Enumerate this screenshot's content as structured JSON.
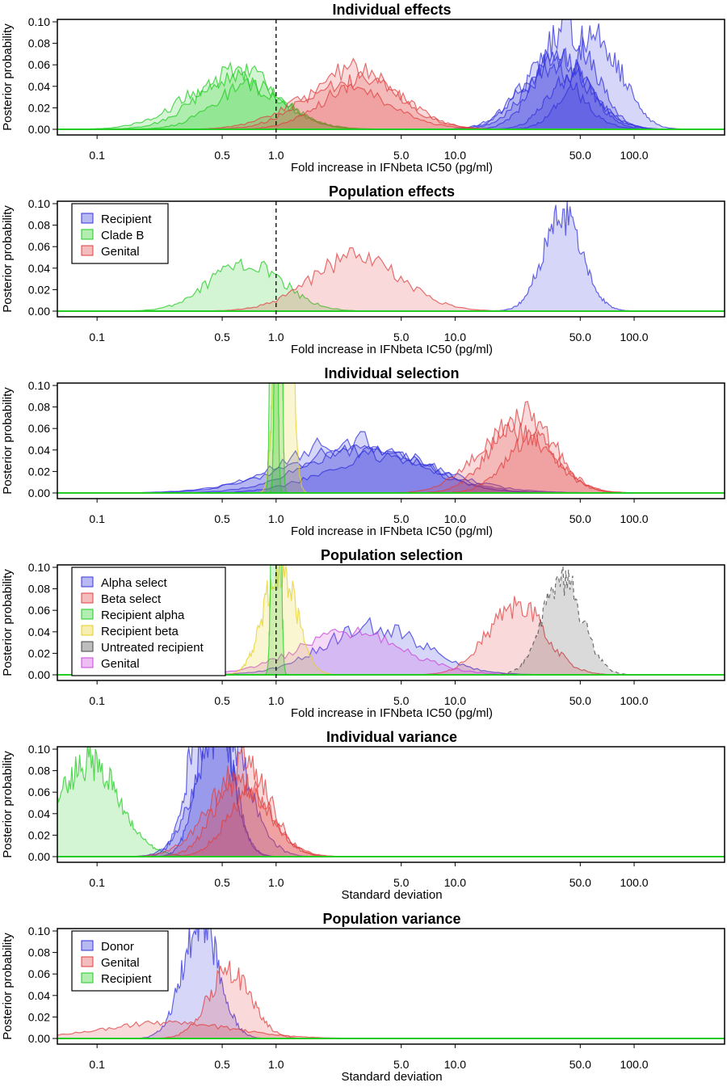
{
  "colors": {
    "blue": "#3333dd",
    "green": "#22cc22",
    "red": "#e04040",
    "yellow": "#e8d020",
    "gray": "#444444",
    "purple": "#cc44dd"
  },
  "chart_data": [
    {
      "type": "area",
      "title": "Individual effects",
      "xlabel": "Fold increase in IFNbeta IC50 (pg/ml)",
      "ylabel": "Posterior probability",
      "xscale": "log",
      "xlim": [
        0.06,
        320
      ],
      "ylim": [
        0,
        0.1
      ],
      "xticks": [
        0.1,
        0.5,
        1.0,
        5.0,
        10.0,
        50.0,
        100.0
      ],
      "xtick_labels": [
        "0.1",
        "0.5",
        "1.0",
        "5.0",
        "10.0",
        "50.0",
        "100.0"
      ],
      "yticks": [
        0,
        0.02,
        0.04,
        0.06,
        0.08,
        0.1
      ],
      "ytick_labels": [
        "0.00",
        "0.02",
        "0.04",
        "0.06",
        "0.08",
        "0.10"
      ],
      "vline": 1.0,
      "legend": null,
      "series": [
        {
          "color": "blue",
          "center": 38,
          "sd": 0.17,
          "peak": 0.065
        },
        {
          "color": "blue",
          "center": 42,
          "sd": 0.15,
          "peak": 0.095
        },
        {
          "color": "blue",
          "center": 36,
          "sd": 0.18,
          "peak": 0.07
        },
        {
          "color": "blue",
          "center": 62,
          "sd": 0.14,
          "peak": 0.085
        },
        {
          "color": "blue",
          "center": 33,
          "sd": 0.16,
          "peak": 0.06
        },
        {
          "color": "blue",
          "center": 45,
          "sd": 0.13,
          "peak": 0.05
        },
        {
          "color": "green",
          "center": 0.62,
          "sd": 0.22,
          "peak": 0.055
        },
        {
          "color": "green",
          "center": 0.72,
          "sd": 0.2,
          "peak": 0.04
        },
        {
          "color": "green",
          "center": 0.55,
          "sd": 0.25,
          "peak": 0.048
        },
        {
          "color": "red",
          "center": 2.7,
          "sd": 0.24,
          "peak": 0.055
        },
        {
          "color": "red",
          "center": 3.2,
          "sd": 0.22,
          "peak": 0.047
        },
        {
          "color": "red",
          "center": 2.3,
          "sd": 0.26,
          "peak": 0.04
        }
      ]
    },
    {
      "type": "area",
      "title": "Population effects",
      "xlabel": "Fold increase in IFNbeta IC50 (pg/ml)",
      "ylabel": "Posterior probability",
      "xscale": "log",
      "xlim": [
        0.06,
        320
      ],
      "ylim": [
        0,
        0.1
      ],
      "xticks": [
        0.1,
        0.5,
        1.0,
        5.0,
        10.0,
        50.0,
        100.0
      ],
      "xtick_labels": [
        "0.1",
        "0.5",
        "1.0",
        "5.0",
        "10.0",
        "50.0",
        "100.0"
      ],
      "yticks": [
        0,
        0.02,
        0.04,
        0.06,
        0.08,
        0.1
      ],
      "ytick_labels": [
        "0.00",
        "0.02",
        "0.04",
        "0.06",
        "0.08",
        "0.10"
      ],
      "vline": 1.0,
      "legend": [
        {
          "label": "Recipient",
          "color": "blue"
        },
        {
          "label": "Clade B",
          "color": "green"
        },
        {
          "label": "Genital",
          "color": "red"
        }
      ],
      "series": [
        {
          "color": "blue",
          "center": 40,
          "sd": 0.11,
          "peak": 0.088
        },
        {
          "color": "green",
          "center": 0.68,
          "sd": 0.2,
          "peak": 0.046
        },
        {
          "color": "red",
          "center": 2.8,
          "sd": 0.25,
          "peak": 0.05
        }
      ]
    },
    {
      "type": "area",
      "title": "Individual selection",
      "xlabel": "Fold increase in IFNbeta IC50 (pg/ml)",
      "ylabel": "Posterior probability",
      "xscale": "log",
      "xlim": [
        0.06,
        320
      ],
      "ylim": [
        0,
        0.1
      ],
      "xticks": [
        0.1,
        0.5,
        1.0,
        5.0,
        10.0,
        50.0,
        100.0
      ],
      "xtick_labels": [
        "0.1",
        "0.5",
        "1.0",
        "5.0",
        "10.0",
        "50.0",
        "100.0"
      ],
      "yticks": [
        0,
        0.02,
        0.04,
        0.06,
        0.08,
        0.1
      ],
      "ytick_labels": [
        "0.00",
        "0.02",
        "0.04",
        "0.06",
        "0.08",
        "0.10"
      ],
      "vline": null,
      "legend": null,
      "series": [
        {
          "color": "blue",
          "center": 2.6,
          "sd": 0.35,
          "peak": 0.05
        },
        {
          "color": "blue",
          "center": 3.3,
          "sd": 0.33,
          "peak": 0.045
        },
        {
          "color": "blue",
          "center": 2.9,
          "sd": 0.4,
          "peak": 0.04
        },
        {
          "color": "blue",
          "center": 3.8,
          "sd": 0.3,
          "peak": 0.035
        },
        {
          "color": "red",
          "center": 24,
          "sd": 0.17,
          "peak": 0.075
        },
        {
          "color": "red",
          "center": 21,
          "sd": 0.2,
          "peak": 0.06
        },
        {
          "color": "red",
          "center": 27,
          "sd": 0.15,
          "peak": 0.05
        },
        {
          "color": "yellow",
          "center": 1.1,
          "sd": 0.035,
          "peak": 0.5
        },
        {
          "color": "green",
          "center": 0.97,
          "sd": 0.012,
          "peak": 1.0
        },
        {
          "color": "green",
          "center": 1.03,
          "sd": 0.012,
          "peak": 1.0
        }
      ]
    },
    {
      "type": "area",
      "title": "Population selection",
      "xlabel": "Fold increase in IFNbeta IC50 (pg/ml)",
      "ylabel": "Posterior probability",
      "xscale": "log",
      "xlim": [
        0.06,
        320
      ],
      "ylim": [
        0,
        0.1
      ],
      "xticks": [
        0.1,
        0.5,
        1.0,
        5.0,
        10.0,
        50.0,
        100.0
      ],
      "xtick_labels": [
        "0.1",
        "0.5",
        "1.0",
        "5.0",
        "10.0",
        "50.0",
        "100.0"
      ],
      "yticks": [
        0,
        0.02,
        0.04,
        0.06,
        0.08,
        0.1
      ],
      "ytick_labels": [
        "0.00",
        "0.02",
        "0.04",
        "0.06",
        "0.08",
        "0.10"
      ],
      "vline": 1.0,
      "legend": [
        {
          "label": "Alpha select",
          "color": "blue"
        },
        {
          "label": "Beta select",
          "color": "red"
        },
        {
          "label": "Recipient alpha",
          "color": "green"
        },
        {
          "label": "Recipient beta",
          "color": "yellow"
        },
        {
          "label": "Untreated recipient",
          "color": "gray"
        },
        {
          "label": "Genital",
          "color": "purple"
        }
      ],
      "series": [
        {
          "color": "blue",
          "center": 3.5,
          "sd": 0.28,
          "peak": 0.045
        },
        {
          "color": "red",
          "center": 22,
          "sd": 0.16,
          "peak": 0.065
        },
        {
          "color": "gray",
          "center": 40,
          "sd": 0.11,
          "peak": 0.088,
          "dashed": true
        },
        {
          "color": "purple",
          "center": 2.6,
          "sd": 0.3,
          "peak": 0.038
        },
        {
          "color": "yellow",
          "center": 1.05,
          "sd": 0.09,
          "peak": 0.1
        },
        {
          "color": "green",
          "center": 1.0,
          "sd": 0.015,
          "peak": 1.0
        }
      ]
    },
    {
      "type": "area",
      "title": "Individual variance",
      "xlabel": "Standard deviation",
      "ylabel": "Posterior probability",
      "xscale": "log",
      "xlim": [
        0.06,
        320
      ],
      "ylim": [
        0,
        0.1
      ],
      "xticks": [
        0.1,
        0.5,
        1.0,
        5.0,
        10.0,
        50.0,
        100.0
      ],
      "xtick_labels": [
        "0.1",
        "0.5",
        "1.0",
        "5.0",
        "10.0",
        "50.0",
        "100.0"
      ],
      "yticks": [
        0,
        0.02,
        0.04,
        0.06,
        0.08,
        0.1
      ],
      "ytick_labels": [
        "0.00",
        "0.02",
        "0.04",
        "0.06",
        "0.08",
        "0.10"
      ],
      "vline": null,
      "legend": null,
      "series": [
        {
          "color": "green",
          "center": 0.09,
          "sd": 0.17,
          "peak": 0.088
        },
        {
          "color": "blue",
          "center": 0.43,
          "sd": 0.1,
          "peak": 0.18
        },
        {
          "color": "blue",
          "center": 0.46,
          "sd": 0.09,
          "peak": 0.15
        },
        {
          "color": "blue",
          "center": 0.5,
          "sd": 0.14,
          "peak": 0.12
        },
        {
          "color": "red",
          "center": 0.66,
          "sd": 0.14,
          "peak": 0.09
        },
        {
          "color": "red",
          "center": 0.6,
          "sd": 0.17,
          "peak": 0.07
        },
        {
          "color": "red",
          "center": 0.72,
          "sd": 0.13,
          "peak": 0.06
        }
      ]
    },
    {
      "type": "area",
      "title": "Population variance",
      "xlabel": "Standard deviation",
      "ylabel": "Posterior probability",
      "xscale": "log",
      "xlim": [
        0.06,
        320
      ],
      "ylim": [
        0,
        0.1
      ],
      "xticks": [
        0.1,
        0.5,
        1.0,
        5.0,
        10.0,
        50.0,
        100.0
      ],
      "xtick_labels": [
        "0.1",
        "0.5",
        "1.0",
        "5.0",
        "10.0",
        "50.0",
        "100.0"
      ],
      "yticks": [
        0,
        0.02,
        0.04,
        0.06,
        0.08,
        0.1
      ],
      "ytick_labels": [
        "0.00",
        "0.02",
        "0.04",
        "0.06",
        "0.08",
        "0.10"
      ],
      "vline": null,
      "legend": [
        {
          "label": "Donor",
          "color": "blue"
        },
        {
          "label": "Genital",
          "color": "red"
        },
        {
          "label": "Recipient",
          "color": "green"
        }
      ],
      "series": [
        {
          "color": "blue",
          "center": 0.38,
          "sd": 0.1,
          "peak": 0.11
        },
        {
          "color": "red",
          "center": 0.55,
          "sd": 0.12,
          "peak": 0.063
        },
        {
          "color": "red",
          "center": 0.25,
          "sd": 0.35,
          "peak": 0.015
        }
      ]
    }
  ]
}
